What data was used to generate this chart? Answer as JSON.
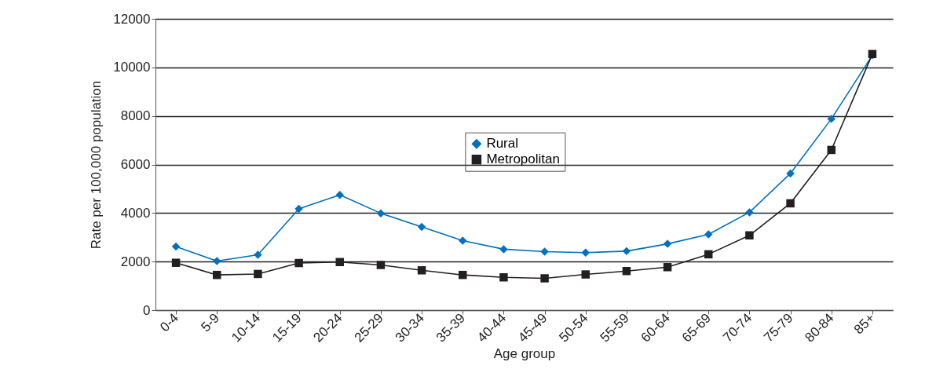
{
  "chart_data": {
    "type": "line",
    "xlabel": "Age group",
    "ylabel": "Rate per 100,000 population",
    "categories": [
      "0-4",
      "5-9",
      "10-14",
      "15-19",
      "20-24",
      "25-29",
      "30-34",
      "35-39",
      "40-44",
      "45-49",
      "50-54",
      "55-59",
      "60-64",
      "65-69",
      "70-74",
      "75-79",
      "80-84",
      "85+"
    ],
    "series": [
      {
        "name": "Rural",
        "color": "#0070c0",
        "marker": "diamond",
        "values": [
          2620,
          2020,
          2280,
          4170,
          4750,
          3990,
          3430,
          2860,
          2510,
          2410,
          2370,
          2430,
          2730,
          3120,
          4030,
          5630,
          7880,
          10500
        ]
      },
      {
        "name": "Metropolitan",
        "color": "#231f20",
        "marker": "square",
        "values": [
          1950,
          1450,
          1490,
          1940,
          1980,
          1860,
          1640,
          1450,
          1350,
          1310,
          1470,
          1610,
          1770,
          2300,
          3080,
          4400,
          6600,
          10550
        ]
      }
    ],
    "ylim": [
      0,
      12000
    ],
    "yticks": [
      0,
      2000,
      4000,
      6000,
      8000,
      10000,
      12000
    ],
    "grid": "y",
    "legend": "center"
  }
}
